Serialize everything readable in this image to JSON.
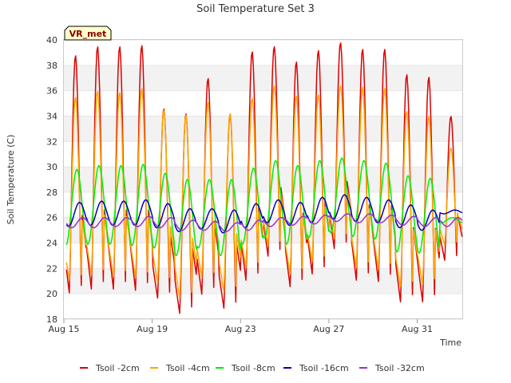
{
  "chart_data": {
    "type": "line",
    "title": "Soil Temperature Set 3",
    "xlabel": "Time",
    "ylabel": "Soil Temperature (C)",
    "badge": "VR_met",
    "ylim": [
      18,
      40
    ],
    "yticks": [
      18,
      20,
      22,
      24,
      26,
      28,
      30,
      32,
      34,
      36,
      38,
      40
    ],
    "xlim": [
      "Aug 15",
      "Aug 33 02:00"
    ],
    "xticks": [
      "Aug 15",
      "Aug 19",
      "Aug 23",
      "Aug 27",
      "Aug 31"
    ],
    "grid": "horizontal bands",
    "legend_position": "bottom",
    "start_date": "2015-08-15",
    "series": [
      {
        "name": "Tsoil -2cm",
        "color": "#dd0000",
        "days_min_max": [
          [
            20.0,
            38.8
          ],
          [
            20.3,
            39.5
          ],
          [
            20.3,
            39.5
          ],
          [
            20.2,
            39.6
          ],
          [
            19.6,
            34.6
          ],
          [
            18.4,
            34.2
          ],
          [
            19.9,
            37.0
          ],
          [
            18.8,
            34.2
          ],
          [
            21.0,
            39.1
          ],
          [
            22.9,
            39.5
          ],
          [
            20.5,
            38.3
          ],
          [
            21.5,
            39.2
          ],
          [
            23.5,
            39.8
          ],
          [
            21.0,
            39.3
          ],
          [
            20.9,
            39.3
          ],
          [
            19.3,
            37.3
          ],
          [
            19.3,
            37.1
          ],
          [
            22.6,
            34.0
          ]
        ]
      },
      {
        "name": "Tsoil -4cm",
        "color": "#ffa500",
        "days_min_max": [
          [
            21.0,
            35.5
          ],
          [
            21.4,
            36.0
          ],
          [
            21.3,
            35.9
          ],
          [
            21.2,
            36.2
          ],
          [
            20.8,
            34.5
          ],
          [
            19.6,
            34.1
          ],
          [
            21.2,
            35.1
          ],
          [
            20.1,
            34.2
          ],
          [
            22.0,
            35.4
          ],
          [
            23.7,
            36.4
          ],
          [
            21.5,
            35.6
          ],
          [
            22.5,
            35.7
          ],
          [
            24.3,
            36.4
          ],
          [
            22.0,
            36.3
          ],
          [
            21.9,
            36.2
          ],
          [
            20.5,
            34.4
          ],
          [
            20.7,
            34.0
          ],
          [
            23.8,
            31.5
          ]
        ]
      },
      {
        "name": "Tsoil -8cm",
        "color": "#00ee00",
        "days_min_max": [
          [
            23.8,
            29.8
          ],
          [
            23.9,
            30.1
          ],
          [
            23.9,
            30.1
          ],
          [
            23.8,
            30.2
          ],
          [
            23.6,
            29.5
          ],
          [
            23.0,
            29.0
          ],
          [
            23.6,
            29.0
          ],
          [
            23.0,
            29.0
          ],
          [
            23.9,
            29.9
          ],
          [
            24.4,
            30.5
          ],
          [
            23.9,
            30.1
          ],
          [
            24.4,
            30.5
          ],
          [
            24.8,
            30.7
          ],
          [
            24.5,
            30.5
          ],
          [
            24.3,
            30.3
          ],
          [
            23.3,
            29.3
          ],
          [
            23.2,
            29.1
          ],
          [
            25.6,
            26.0
          ]
        ]
      },
      {
        "name": "Tsoil -16cm",
        "color": "#0000bb",
        "days_min_max": [
          [
            25.3,
            27.2
          ],
          [
            25.4,
            27.3
          ],
          [
            25.4,
            27.3
          ],
          [
            25.4,
            27.4
          ],
          [
            25.2,
            27.1
          ],
          [
            24.9,
            26.7
          ],
          [
            25.1,
            26.7
          ],
          [
            24.8,
            26.6
          ],
          [
            25.2,
            27.1
          ],
          [
            25.6,
            27.4
          ],
          [
            25.4,
            27.2
          ],
          [
            25.6,
            27.6
          ],
          [
            25.9,
            27.8
          ],
          [
            25.7,
            27.6
          ],
          [
            25.6,
            27.4
          ],
          [
            25.2,
            27.0
          ],
          [
            25.0,
            26.6
          ],
          [
            26.3,
            26.6
          ]
        ]
      },
      {
        "name": "Tsoil -32cm",
        "color": "#9932cc",
        "days_min_max": [
          [
            25.2,
            26.0
          ],
          [
            25.2,
            26.0
          ],
          [
            25.3,
            26.0
          ],
          [
            25.3,
            26.1
          ],
          [
            25.2,
            26.0
          ],
          [
            25.0,
            25.8
          ],
          [
            25.0,
            25.7
          ],
          [
            24.9,
            25.6
          ],
          [
            25.0,
            25.8
          ],
          [
            25.3,
            26.0
          ],
          [
            25.4,
            26.1
          ],
          [
            25.5,
            26.2
          ],
          [
            25.7,
            26.3
          ],
          [
            25.6,
            26.3
          ],
          [
            25.6,
            26.2
          ],
          [
            25.4,
            26.1
          ],
          [
            25.3,
            26.0
          ],
          [
            25.3,
            26.0
          ]
        ]
      }
    ]
  }
}
